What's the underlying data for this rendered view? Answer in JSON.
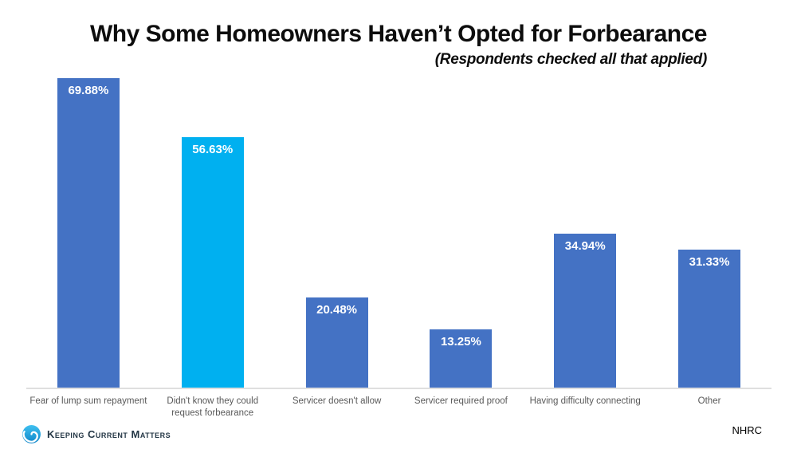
{
  "chart_data": {
    "type": "bar",
    "title": "Why Some Homeowners Haven’t Opted for Forbearance",
    "subtitle": "(Respondents checked all that applied)",
    "categories": [
      "Fear of lump sum repayment",
      "Didn't know they could\nrequest forbearance",
      "Servicer doesn't allow",
      "Servicer required proof",
      "Having difficulty connecting",
      "Other"
    ],
    "values": [
      69.88,
      56.63,
      20.48,
      13.25,
      34.94,
      31.33
    ],
    "value_labels": [
      "69.88%",
      "56.63%",
      "20.48%",
      "13.25%",
      "34.94%",
      "31.33%"
    ],
    "bar_colors": [
      "#4472C4",
      "#00B0F0",
      "#4472C4",
      "#4472C4",
      "#4472C4",
      "#4472C4"
    ],
    "highlight_index": 1,
    "ylim": [
      0,
      70
    ],
    "grid": false,
    "legend": false,
    "xlabel": "",
    "ylabel": ""
  },
  "footer": {
    "brand": "Keeping Current Matters",
    "source": "NHRC"
  },
  "colors": {
    "bar_default": "#4472C4",
    "bar_highlight": "#00B0F0",
    "axis_line": "#DFDFDF",
    "category_text": "#595959",
    "brand_navy": "#243746",
    "brand_cyan": "#29ABE2"
  }
}
